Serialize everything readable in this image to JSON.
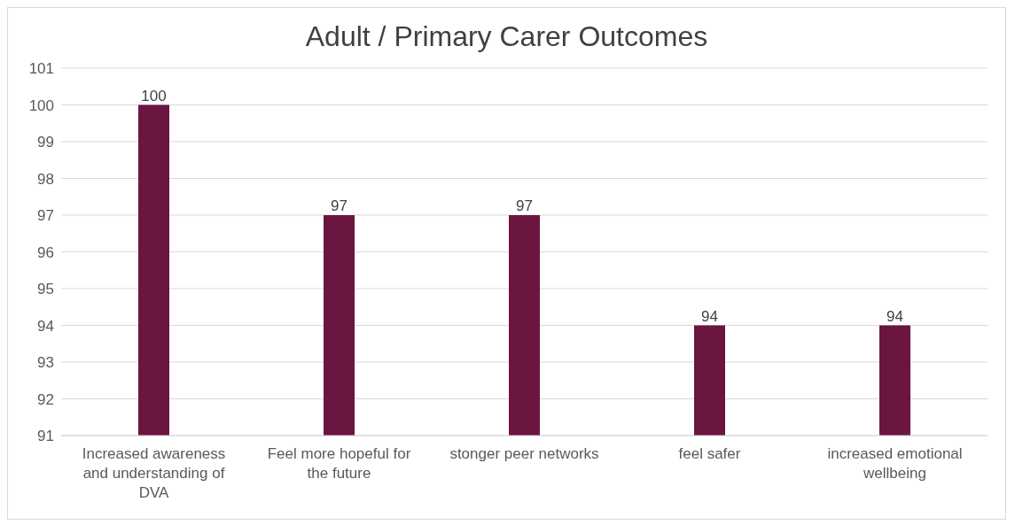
{
  "chart_data": {
    "type": "bar",
    "title": "Adult / Primary Carer Outcomes",
    "categories": [
      "Increased awareness and understanding of DVA",
      "Feel more hopeful for the future",
      "stonger peer networks",
      "feel safer",
      "increased emotional wellbeing"
    ],
    "values": [
      100,
      97,
      97,
      94,
      94
    ],
    "color": "#6b1541",
    "ylim": [
      91,
      101
    ],
    "yticks": [
      91,
      92,
      93,
      94,
      95,
      96,
      97,
      98,
      99,
      100,
      101
    ],
    "grid": "y",
    "data_labels": true
  }
}
